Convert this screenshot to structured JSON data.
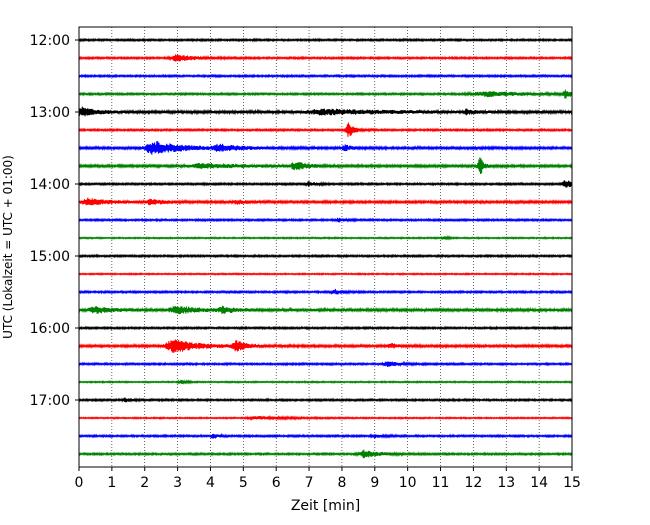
{
  "chart_data": {
    "type": "line",
    "subtype": "helicorder",
    "xlabel": "Zeit  [min]",
    "ylabel": "UTC (Lokalzeit = UTC + 01:00)",
    "xlim": [
      0,
      15
    ],
    "x_ticks": [
      0,
      1,
      2,
      3,
      4,
      5,
      6,
      7,
      8,
      9,
      10,
      11,
      12,
      13,
      14,
      15
    ],
    "x_gridlines": "dotted",
    "y_tick_labels": [
      "12:00",
      "13:00",
      "14:00",
      "15:00",
      "16:00",
      "17:00"
    ],
    "row_interval_min": 15,
    "row_colors": [
      "#000000",
      "#ff0000",
      "#0000ff",
      "#008000"
    ],
    "rows": [
      {
        "start": "12:00",
        "color": "#000000",
        "noise": 0.2,
        "events": []
      },
      {
        "start": "12:15",
        "color": "#ff0000",
        "noise": 0.2,
        "events": [
          {
            "t": 3.0,
            "amp": 0.7,
            "dur": 1.0
          }
        ]
      },
      {
        "start": "12:30",
        "color": "#0000ff",
        "noise": 0.2,
        "events": []
      },
      {
        "start": "12:45",
        "color": "#008000",
        "noise": 0.2,
        "events": [
          {
            "t": 12.4,
            "amp": 0.5,
            "dur": 2.4
          },
          {
            "t": 14.8,
            "amp": 0.8,
            "dur": 0.3
          }
        ]
      },
      {
        "start": "13:00",
        "color": "#000000",
        "noise": 0.3,
        "events": [
          {
            "t": 0.1,
            "amp": 0.9,
            "dur": 0.8
          },
          {
            "t": 7.5,
            "amp": 0.5,
            "dur": 3.5
          },
          {
            "t": 11.8,
            "amp": 0.5,
            "dur": 0.4
          }
        ]
      },
      {
        "start": "13:15",
        "color": "#ff0000",
        "noise": 0.2,
        "events": [
          {
            "t": 8.2,
            "amp": 1.6,
            "dur": 0.3
          }
        ]
      },
      {
        "start": "13:30",
        "color": "#0000ff",
        "noise": 0.25,
        "events": [
          {
            "t": 2.3,
            "amp": 1.4,
            "dur": 1.6
          },
          {
            "t": 4.3,
            "amp": 0.7,
            "dur": 1.1
          },
          {
            "t": 8.1,
            "amp": 0.6,
            "dur": 0.4
          }
        ]
      },
      {
        "start": "13:45",
        "color": "#008000",
        "noise": 0.25,
        "events": [
          {
            "t": 3.8,
            "amp": 0.5,
            "dur": 2.5
          },
          {
            "t": 6.6,
            "amp": 0.8,
            "dur": 0.7
          },
          {
            "t": 12.2,
            "amp": 2.5,
            "dur": 0.15
          }
        ]
      },
      {
        "start": "14:00",
        "color": "#000000",
        "noise": 0.2,
        "events": [
          {
            "t": 7.0,
            "amp": 0.5,
            "dur": 0.3
          },
          {
            "t": 14.8,
            "amp": 0.9,
            "dur": 0.4
          }
        ]
      },
      {
        "start": "14:15",
        "color": "#ff0000",
        "noise": 0.25,
        "events": [
          {
            "t": 0.3,
            "amp": 0.7,
            "dur": 1.2
          },
          {
            "t": 2.2,
            "amp": 0.5,
            "dur": 0.7
          },
          {
            "t": 4.8,
            "amp": 0.4,
            "dur": 0.6
          }
        ]
      },
      {
        "start": "14:30",
        "color": "#0000ff",
        "noise": 0.2,
        "events": [
          {
            "t": 7.9,
            "amp": 0.4,
            "dur": 0.3
          }
        ]
      },
      {
        "start": "14:45",
        "color": "#008000",
        "noise": 0.15,
        "events": [
          {
            "t": 11.1,
            "amp": 0.4,
            "dur": 0.2
          }
        ]
      },
      {
        "start": "15:00",
        "color": "#000000",
        "noise": 0.2,
        "events": []
      },
      {
        "start": "15:15",
        "color": "#ff0000",
        "noise": 0.15,
        "events": []
      },
      {
        "start": "15:30",
        "color": "#0000ff",
        "noise": 0.2,
        "events": [
          {
            "t": 7.8,
            "amp": 0.5,
            "dur": 0.4
          }
        ]
      },
      {
        "start": "15:45",
        "color": "#008000",
        "noise": 0.3,
        "events": [
          {
            "t": 0.5,
            "amp": 0.6,
            "dur": 1.0
          },
          {
            "t": 3.0,
            "amp": 0.7,
            "dur": 1.4
          },
          {
            "t": 4.4,
            "amp": 0.6,
            "dur": 0.6
          }
        ]
      },
      {
        "start": "16:00",
        "color": "#000000",
        "noise": 0.2,
        "events": []
      },
      {
        "start": "16:15",
        "color": "#ff0000",
        "noise": 0.25,
        "events": [
          {
            "t": 2.9,
            "amp": 1.5,
            "dur": 1.3
          },
          {
            "t": 4.8,
            "amp": 1.0,
            "dur": 0.6
          },
          {
            "t": 9.5,
            "amp": 0.5,
            "dur": 0.4
          }
        ]
      },
      {
        "start": "16:30",
        "color": "#0000ff",
        "noise": 0.2,
        "events": [
          {
            "t": 9.4,
            "amp": 0.6,
            "dur": 0.5
          }
        ]
      },
      {
        "start": "16:45",
        "color": "#008000",
        "noise": 0.15,
        "events": [
          {
            "t": 3.1,
            "amp": 0.4,
            "dur": 0.3
          }
        ]
      },
      {
        "start": "17:00",
        "color": "#000000",
        "noise": 0.2,
        "events": [
          {
            "t": 1.4,
            "amp": 0.4,
            "dur": 0.3
          }
        ]
      },
      {
        "start": "17:15",
        "color": "#ff0000",
        "noise": 0.15,
        "events": [
          {
            "t": 5.5,
            "amp": 0.3,
            "dur": 1.6
          }
        ]
      },
      {
        "start": "17:30",
        "color": "#0000ff",
        "noise": 0.2,
        "events": [
          {
            "t": 4.1,
            "amp": 0.6,
            "dur": 0.2
          },
          {
            "t": 9.0,
            "amp": 0.4,
            "dur": 0.4
          }
        ]
      },
      {
        "start": "17:45",
        "color": "#008000",
        "noise": 0.2,
        "events": [
          {
            "t": 8.7,
            "amp": 0.8,
            "dur": 0.8
          }
        ]
      }
    ]
  }
}
